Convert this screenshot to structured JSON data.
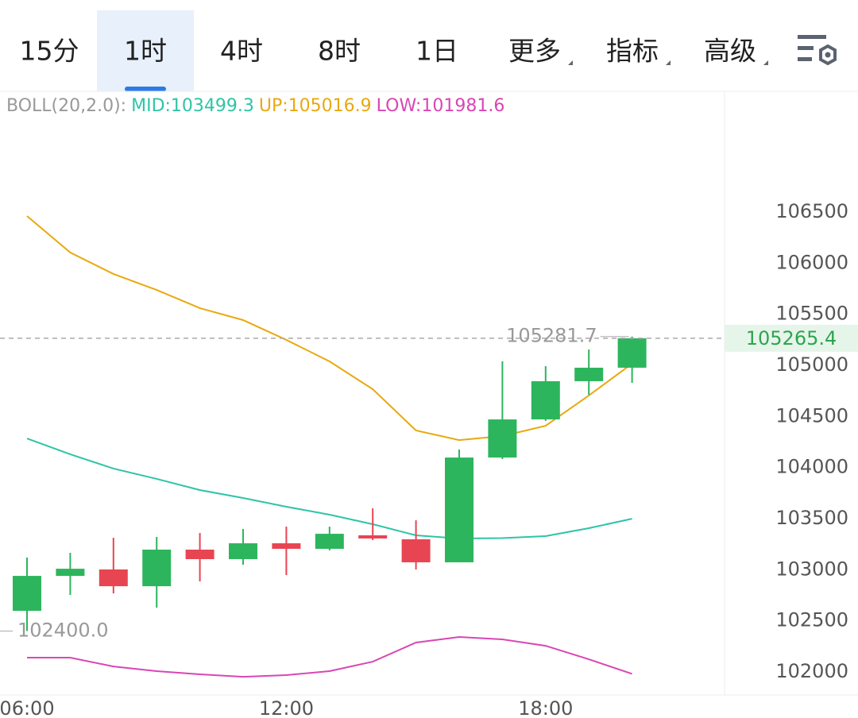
{
  "tabs": {
    "items": [
      "15分",
      "1时",
      "4时",
      "8时",
      "1日",
      "更多",
      "指标",
      "高级"
    ],
    "active": 1,
    "dropdown_from": 5
  },
  "chart_data": {
    "type": "candlestick",
    "indicator": "BOLL(20,2.0):",
    "categories": [
      "06:00",
      null,
      null,
      null,
      null,
      null,
      "12:00",
      null,
      null,
      null,
      null,
      null,
      "18:00",
      null,
      null
    ],
    "open": [
      102598,
      102940,
      103003,
      102839,
      103197,
      103104,
      103259,
      103205,
      103337,
      103298,
      103073,
      104098,
      104471,
      104845,
      104977
    ],
    "high": [
      103119,
      103166,
      103313,
      103321,
      103360,
      103399,
      103422,
      103422,
      103601,
      103484,
      104176,
      105039,
      104992,
      105155,
      105281.7
    ],
    "low": [
      102400,
      102754,
      102769,
      102630,
      102886,
      103049,
      102948,
      103189,
      103290,
      103003,
      103073,
      104083,
      104456,
      104712,
      104829
    ],
    "close": [
      102940,
      103010,
      102839,
      103197,
      103104,
      103259,
      103205,
      103352,
      103306,
      103073,
      104098,
      104471,
      104845,
      104977,
      105265.4
    ],
    "low_label": "102400.0",
    "up_color": "#2db55d",
    "down_color": "#e84552",
    "series": [
      {
        "name": "MID:",
        "color": "#2ec4a6",
        "values": [
          104285,
          104130,
          103990,
          103889,
          103780,
          103702,
          103617,
          103539,
          103446,
          103337,
          103306,
          103310,
          103329,
          103407,
          103499.3
        ]
      },
      {
        "name": "UP:",
        "color": "#e8a90f",
        "values": [
          106461,
          106104,
          105894,
          105738,
          105560,
          105443,
          105249,
          105039,
          104767,
          104363,
          104269,
          104308,
          104409,
          104705,
          105016.9
        ]
      },
      {
        "name": "LOW:",
        "color": "#d946b4",
        "values": [
          102140,
          102140,
          102054,
          102008,
          101977,
          101953,
          101969,
          102008,
          102101,
          102288,
          102342,
          102319,
          102256,
          102124,
          101981.6
        ]
      }
    ],
    "ylim": [
      101775,
      107681
    ],
    "yticks": [
      102000,
      102500,
      103000,
      103500,
      104000,
      104500,
      105000,
      105500,
      106000,
      106500
    ]
  }
}
